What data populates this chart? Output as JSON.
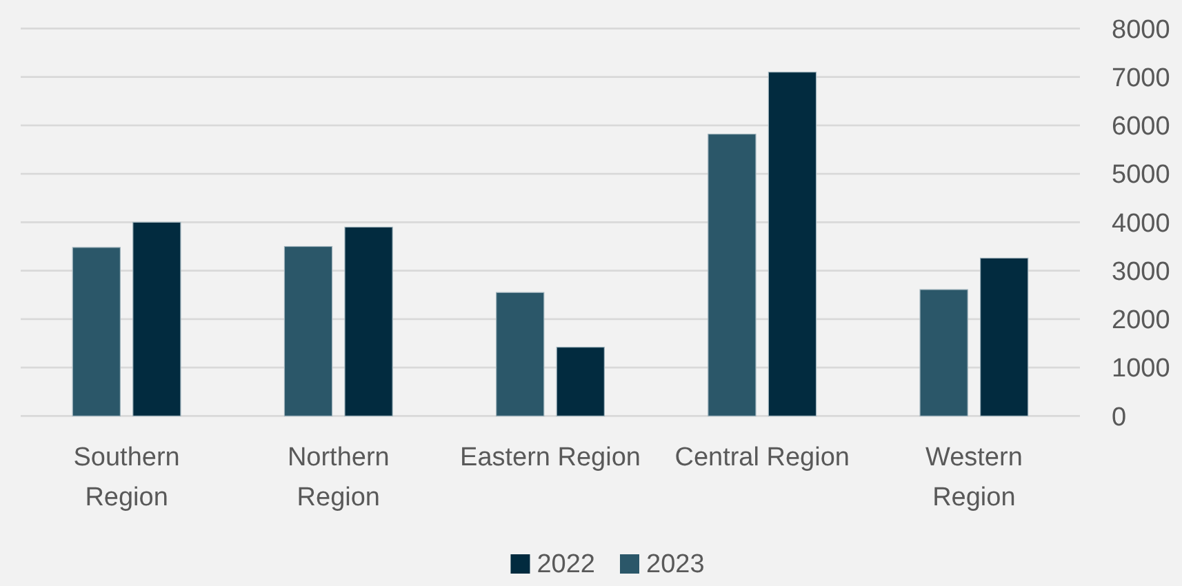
{
  "chart_data": {
    "type": "bar",
    "categories": [
      "Southern Region",
      "Northern Region",
      "Eastern Region",
      "Central Region",
      "Western Region"
    ],
    "series": [
      {
        "name": "2023",
        "color": "#2b5769",
        "values": [
          3480,
          3500,
          2550,
          5820,
          2610
        ]
      },
      {
        "name": "2022",
        "color": "#022b3f",
        "values": [
          4000,
          3900,
          1420,
          7100,
          3260
        ]
      }
    ],
    "ylim": [
      0,
      8000
    ],
    "yticks": [
      0,
      1000,
      2000,
      3000,
      4000,
      5000,
      6000,
      7000,
      8000
    ],
    "grid": "y",
    "legend": "bottom"
  }
}
